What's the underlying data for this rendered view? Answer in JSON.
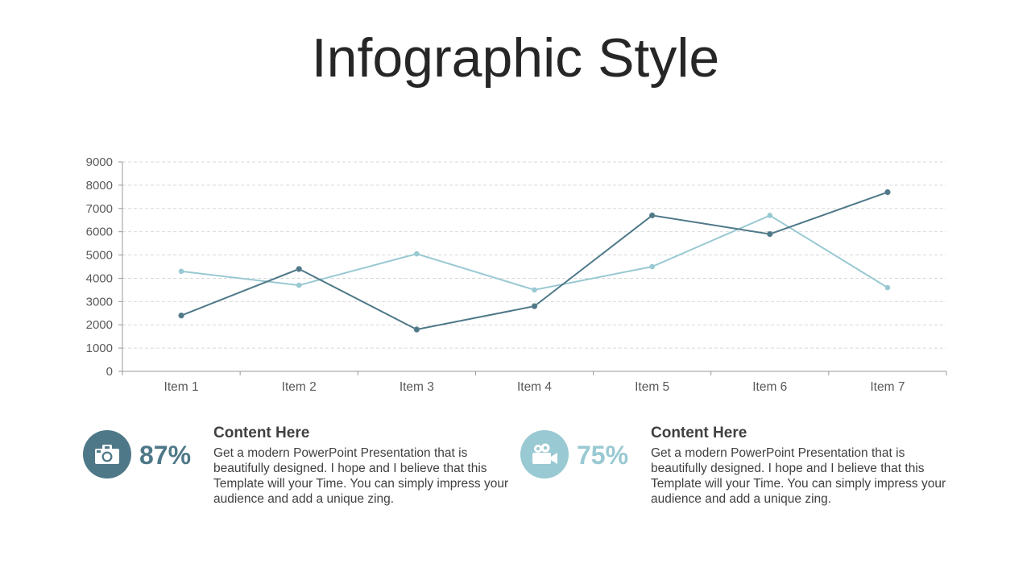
{
  "page": {
    "title": "Infographic Style"
  },
  "colors": {
    "dark_series": "#4e7888",
    "light_series": "#99c9d2",
    "grid": "#d9d9d9",
    "axis": "#999999"
  },
  "chart_data": {
    "type": "line",
    "title": "",
    "xlabel": "",
    "ylabel": "",
    "categories": [
      "Item 1",
      "Item 2",
      "Item 3",
      "Item 4",
      "Item 5",
      "Item 6",
      "Item 7"
    ],
    "ylim": [
      0,
      9000
    ],
    "yticks": [
      "0",
      "1000",
      "2000",
      "3000",
      "4000",
      "5000",
      "6000",
      "7000",
      "8000",
      "9000"
    ],
    "grid": true,
    "legend": "none",
    "series": [
      {
        "color": "#4e7888",
        "values": [
          2400,
          4400,
          1800,
          2800,
          6700,
          5900,
          7700
        ]
      },
      {
        "color": "#99c9d2",
        "values": [
          4300,
          3700,
          5050,
          3500,
          4500,
          6700,
          3600
        ]
      }
    ]
  },
  "stats": [
    {
      "icon": "camera-icon",
      "color": "#4e7888",
      "percent": "87%",
      "heading": "Content Here",
      "body": "Get a modern PowerPoint  Presentation that is beautifully  designed. I hope and I believe that this Template will your Time. You can simply impress your audience and add a unique zing."
    },
    {
      "icon": "video-camera-icon",
      "color": "#99c9d2",
      "percent": "75%",
      "heading": "Content Here",
      "body": "Get a modern PowerPoint  Presentation that is beautifully  designed. I hope and I believe that this Template will your Time. You can simply impress your audience and add a unique zing."
    }
  ]
}
